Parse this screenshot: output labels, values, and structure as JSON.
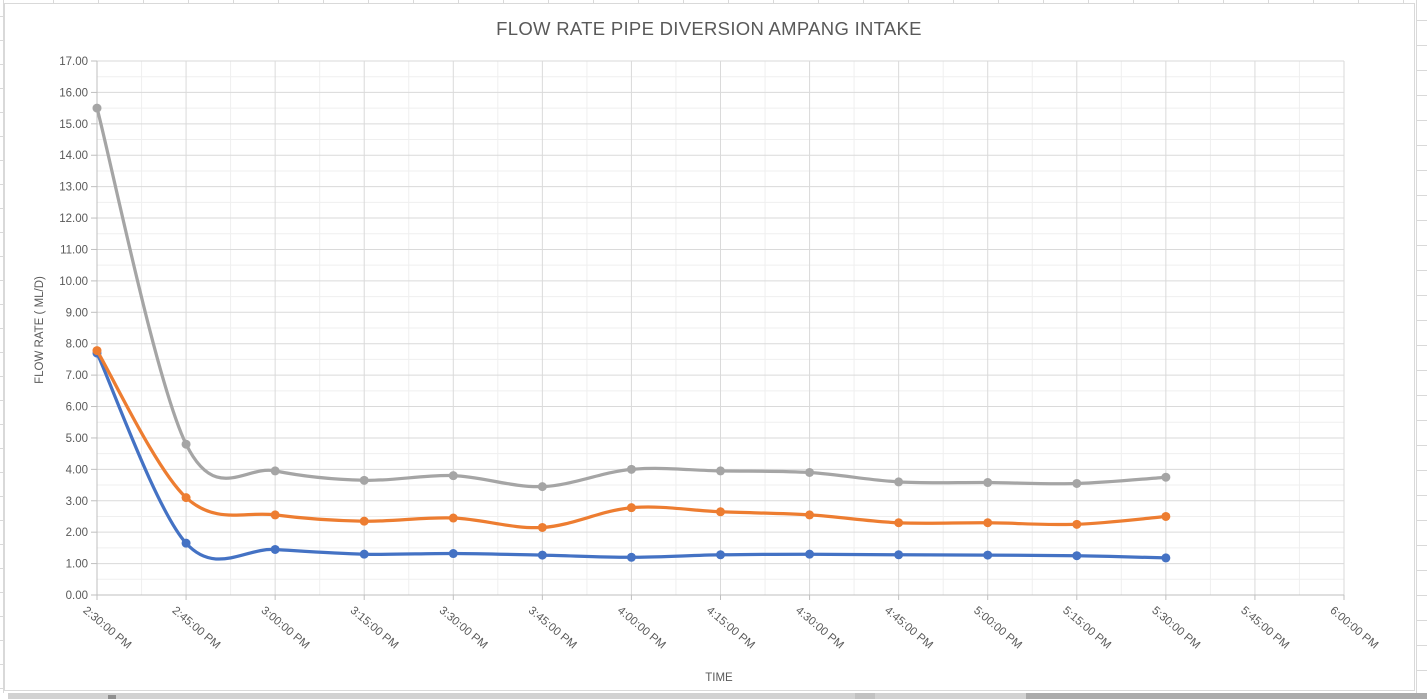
{
  "chart_data": {
    "type": "line",
    "title": "FLOW RATE PIPE DIVERSION AMPANG INTAKE",
    "xlabel": "TIME",
    "ylabel": "FLOW RATE ( ML/D)",
    "categories": [
      "2:30:00 PM",
      "2:45:00 PM",
      "3:00:00 PM",
      "3:15:00 PM",
      "3:30:00 PM",
      "3:45:00 PM",
      "4:00:00 PM",
      "4:15:00 PM",
      "4:30:00 PM",
      "4:45:00 PM",
      "5:00:00 PM",
      "5:15:00 PM",
      "5:30:00 PM",
      "5:45:00 PM",
      "6:00:00 PM"
    ],
    "series": [
      {
        "name": "blue",
        "color": "#4472C4",
        "values": [
          7.7,
          1.65,
          1.45,
          1.3,
          1.32,
          1.27,
          1.2,
          1.28,
          1.3,
          1.28,
          1.27,
          1.25,
          1.18
        ]
      },
      {
        "name": "orange",
        "color": "#ED7D31",
        "values": [
          7.78,
          3.1,
          2.55,
          2.35,
          2.45,
          2.15,
          2.78,
          2.65,
          2.55,
          2.3,
          2.3,
          2.25,
          2.5
        ]
      },
      {
        "name": "gray",
        "color": "#A5A5A5",
        "values": [
          15.5,
          4.8,
          3.95,
          3.65,
          3.8,
          3.45,
          4.0,
          3.95,
          3.9,
          3.6,
          3.58,
          3.55,
          3.75
        ]
      }
    ],
    "ylim": [
      0,
      17
    ],
    "ytick_step": 1.0,
    "ytick_decimals": 2,
    "grid": "major+minor",
    "legend_position": "none",
    "line_style": "smooth",
    "markers": "circle"
  },
  "colors": {
    "grid_major": "#dadada",
    "grid_minor": "#efefef",
    "axis_line": "#bfbfbf",
    "tick": "#bfbfbf",
    "text": "#595959",
    "chart_border": "#d9d9d9",
    "chart_fill": "#ffffff",
    "sheet_grid": "#d9d9d9",
    "scrollbar_track": "#d2d2d2",
    "scrollbar_thumb": "#ababab"
  }
}
